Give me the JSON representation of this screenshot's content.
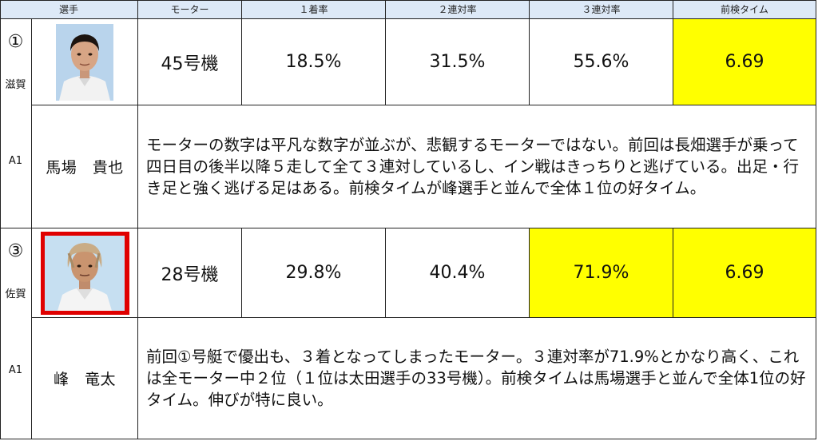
{
  "headers": {
    "player": "選手",
    "motor": "モーター",
    "rate1": "１着率",
    "rate2": "２連対率",
    "rate3": "３連対率",
    "time": "前検タイム"
  },
  "racers": [
    {
      "number": "①",
      "region": "滋賀",
      "class": "A1",
      "name": "馬場　貴也",
      "motor": "45号機",
      "rate1": "18.5%",
      "rate2": "31.5%",
      "rate3": "55.6%",
      "time": "6.69",
      "comment": "モーターの数字は平凡な数字が並ぶが、悲観するモーターではない。前回は長畑選手が乗って四日目の後半以降５走して全て３連対しているし、イン戦はきっちりと逃げている。出足・行き足と強く逃げる足はある。前検タイムが峰選手と並んで全体１位の好タイム。"
    },
    {
      "number": "③",
      "region": "佐賀",
      "class": "A1",
      "name": "峰　竜太",
      "motor": "28号機",
      "rate1": "29.8%",
      "rate2": "40.4%",
      "rate3": "71.9%",
      "time": "6.69",
      "comment": "前回①号艇で優出も、３着となってしまったモーター。３連対率が71.9%とかなり高く、これは全モーター中２位（１位は太田選手の33号機）。前検タイムは馬場選手と並んで全体1位の好タイム。伸びが特に良い。"
    }
  ],
  "colors": {
    "header_bg": "#dde9f7",
    "highlight": "#ffff00",
    "photo_frame_2": "#e00000"
  },
  "icons": [
    "portrait-1",
    "portrait-2"
  ]
}
